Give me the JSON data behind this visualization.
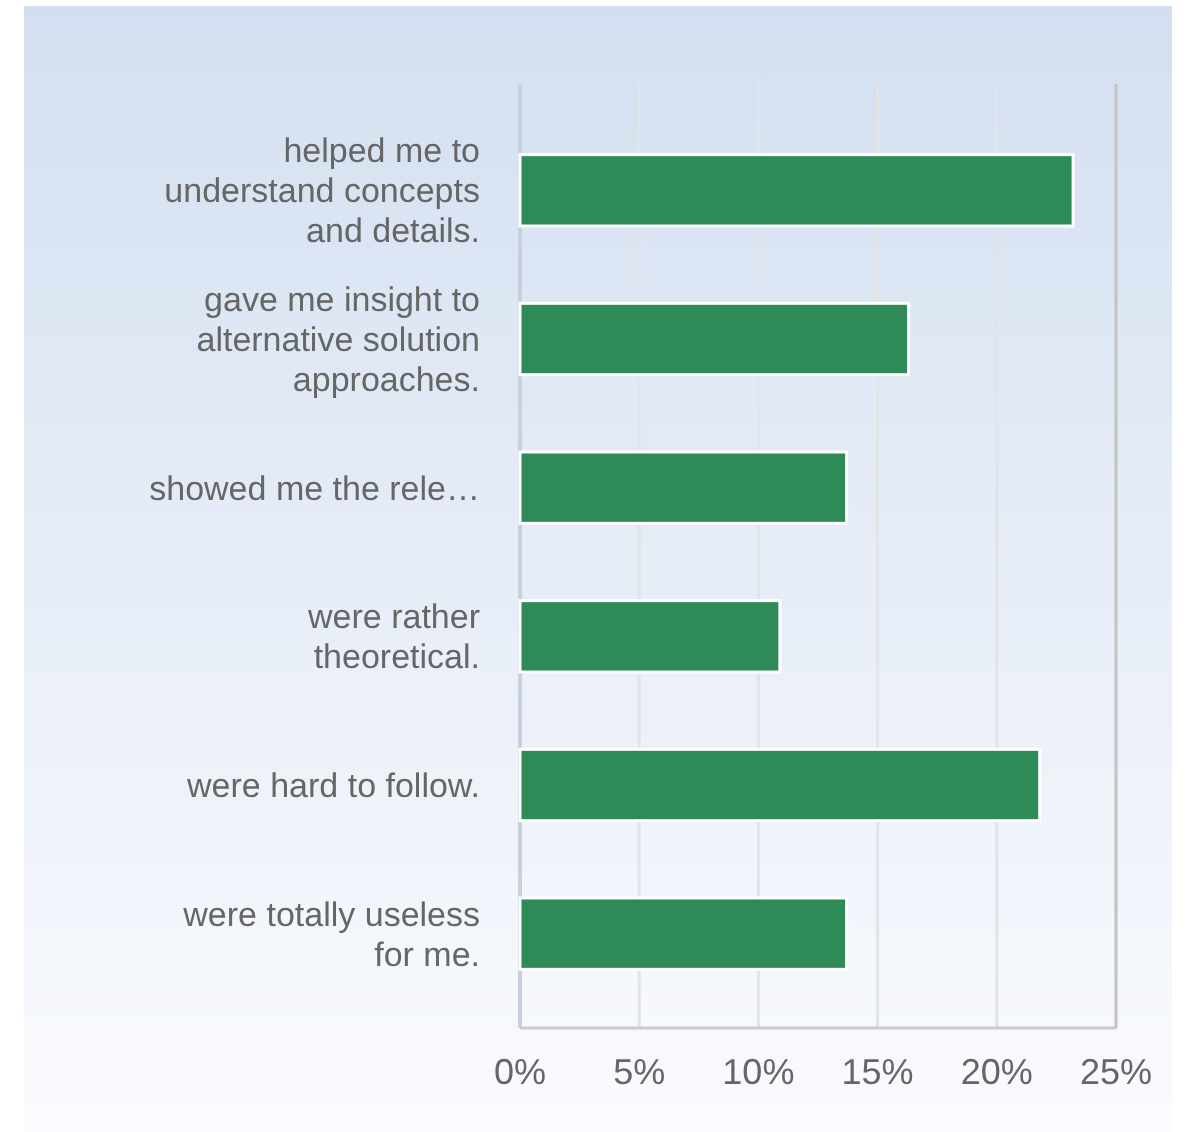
{
  "chart_data": {
    "type": "bar",
    "orientation": "horizontal",
    "categories": [
      "helped me to understand concepts and details.",
      "gave me insight to alternative solution approaches.",
      "showed me the rele…",
      "were rather theoretical.",
      "were hard to follow.",
      "were totally useless for me."
    ],
    "values": [
      23.2,
      16.3,
      13.7,
      10.9,
      21.8,
      13.7
    ],
    "color": "#2e8b57",
    "xlim": [
      0,
      25
    ],
    "xticks": [
      {
        "value": 0,
        "label": "0%"
      },
      {
        "value": 5,
        "label": "5%"
      },
      {
        "value": 10,
        "label": "10%"
      },
      {
        "value": 15,
        "label": "15%"
      },
      {
        "value": 20,
        "label": "20%"
      },
      {
        "value": 25,
        "label": "25%"
      }
    ],
    "grid": "x"
  }
}
